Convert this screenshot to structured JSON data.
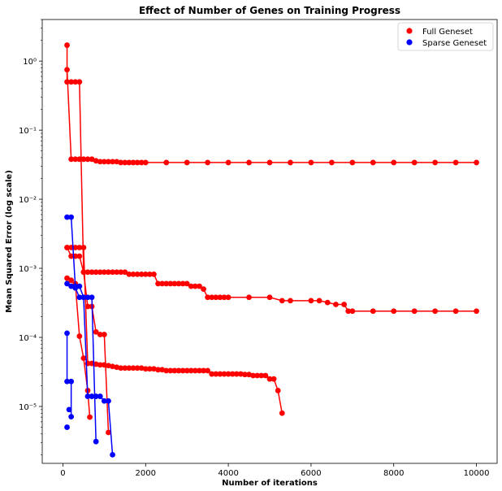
{
  "chart_data": {
    "type": "scatter",
    "title": "Effect of Number of Genes on Training Progress",
    "xlabel": "Number of iterations",
    "ylabel": "Mean Squared Error (log scale)",
    "xlim": [
      -500,
      10500
    ],
    "ylim": [
      1.5e-06,
      4
    ],
    "yscale": "log",
    "legend_position": "upper right",
    "x_ticks": [
      0,
      2000,
      4000,
      6000,
      8000,
      10000
    ],
    "x_tick_labels": [
      "0",
      "2000",
      "4000",
      "6000",
      "8000",
      "10000"
    ],
    "y_ticks": [
      1e-05,
      0.0001,
      0.001,
      0.01,
      0.1,
      1
    ],
    "y_tick_labels": [
      "10⁻⁵",
      "10⁻⁴",
      "10⁻³",
      "10⁻²",
      "10⁻¹",
      "10⁰"
    ],
    "colors": {
      "Full Geneset": "#ff0000",
      "Sparse Geneset": "#0000ff"
    },
    "legend": [
      "Full Geneset",
      "Sparse Geneset"
    ],
    "series": [
      {
        "name": "Full Geneset",
        "color": "#ff0000",
        "points": [
          [
            100,
            1.7
          ],
          [
            100,
            0.5
          ],
          [
            200,
            0.5
          ],
          [
            300,
            0.5
          ],
          [
            400,
            0.5
          ],
          [
            500,
            0.00088
          ],
          [
            600,
            0.00028
          ],
          [
            700,
            0.00028
          ],
          [
            800,
            0.00012
          ],
          [
            900,
            0.00011
          ],
          [
            1000,
            0.00011
          ],
          [
            1100,
            4.2e-06
          ]
        ]
      },
      {
        "name": "Full Geneset",
        "color": "#ff0000",
        "points": [
          [
            100,
            0.75
          ],
          [
            200,
            0.038
          ],
          [
            300,
            0.038
          ],
          [
            400,
            0.038
          ],
          [
            500,
            0.038
          ],
          [
            600,
            0.038
          ],
          [
            700,
            0.038
          ],
          [
            800,
            0.036
          ],
          [
            900,
            0.035
          ],
          [
            1000,
            0.035
          ],
          [
            1100,
            0.035
          ],
          [
            1200,
            0.035
          ],
          [
            1300,
            0.035
          ],
          [
            1400,
            0.034
          ],
          [
            1500,
            0.034
          ],
          [
            1600,
            0.034
          ],
          [
            1700,
            0.034
          ],
          [
            1800,
            0.034
          ],
          [
            1900,
            0.034
          ],
          [
            2000,
            0.034
          ],
          [
            2500,
            0.034
          ],
          [
            3000,
            0.034
          ],
          [
            3500,
            0.034
          ],
          [
            4000,
            0.034
          ],
          [
            4500,
            0.034
          ],
          [
            5000,
            0.034
          ],
          [
            5500,
            0.034
          ],
          [
            6000,
            0.034
          ],
          [
            6500,
            0.034
          ],
          [
            7000,
            0.034
          ],
          [
            7500,
            0.034
          ],
          [
            8000,
            0.034
          ],
          [
            8500,
            0.034
          ],
          [
            9000,
            0.034
          ],
          [
            9500,
            0.034
          ],
          [
            10000,
            0.034
          ]
        ]
      },
      {
        "name": "Full Geneset",
        "color": "#ff0000",
        "points": [
          [
            100,
            0.002
          ],
          [
            200,
            0.0015
          ],
          [
            300,
            0.0015
          ],
          [
            400,
            0.0015
          ],
          [
            500,
            0.00088
          ],
          [
            600,
            0.00088
          ],
          [
            700,
            0.00088
          ],
          [
            800,
            0.00088
          ],
          [
            900,
            0.00088
          ],
          [
            1000,
            0.00088
          ],
          [
            1100,
            0.00088
          ],
          [
            1200,
            0.00088
          ],
          [
            1300,
            0.00088
          ],
          [
            1400,
            0.00088
          ],
          [
            1500,
            0.00088
          ],
          [
            1600,
            0.00082
          ],
          [
            1700,
            0.00082
          ],
          [
            1800,
            0.00082
          ],
          [
            1900,
            0.00082
          ],
          [
            2000,
            0.00082
          ],
          [
            2100,
            0.00082
          ],
          [
            2200,
            0.00082
          ],
          [
            2300,
            0.0006
          ],
          [
            2400,
            0.0006
          ],
          [
            2500,
            0.0006
          ],
          [
            2600,
            0.0006
          ],
          [
            2700,
            0.0006
          ],
          [
            2800,
            0.0006
          ],
          [
            2900,
            0.0006
          ],
          [
            3000,
            0.0006
          ],
          [
            3100,
            0.00055
          ],
          [
            3200,
            0.00055
          ],
          [
            3300,
            0.00055
          ],
          [
            3400,
            0.0005
          ],
          [
            3500,
            0.00038
          ],
          [
            3600,
            0.00038
          ],
          [
            3700,
            0.00038
          ],
          [
            3800,
            0.00038
          ],
          [
            3900,
            0.00038
          ],
          [
            4000,
            0.00038
          ],
          [
            4500,
            0.00038
          ],
          [
            5000,
            0.00038
          ],
          [
            5300,
            0.00034
          ],
          [
            5500,
            0.00034
          ],
          [
            6000,
            0.00034
          ],
          [
            6200,
            0.00034
          ],
          [
            6400,
            0.00032
          ],
          [
            6600,
            0.0003
          ],
          [
            6800,
            0.0003
          ],
          [
            6900,
            0.00024
          ],
          [
            7000,
            0.00024
          ],
          [
            7500,
            0.00024
          ],
          [
            8000,
            0.00024
          ],
          [
            8500,
            0.00024
          ],
          [
            9000,
            0.00024
          ],
          [
            9500,
            0.00024
          ],
          [
            10000,
            0.00024
          ]
        ]
      },
      {
        "name": "Full Geneset",
        "color": "#ff0000",
        "points": [
          [
            100,
            0.002
          ],
          [
            200,
            0.002
          ],
          [
            300,
            0.002
          ],
          [
            400,
            0.002
          ],
          [
            500,
            0.002
          ],
          [
            600,
            4.2e-05
          ],
          [
            700,
            4.2e-05
          ],
          [
            800,
            4.1e-05
          ],
          [
            900,
            4e-05
          ],
          [
            1000,
            4e-05
          ],
          [
            1100,
            3.9e-05
          ],
          [
            1200,
            3.8e-05
          ],
          [
            1300,
            3.7e-05
          ],
          [
            1400,
            3.6e-05
          ],
          [
            1500,
            3.6e-05
          ],
          [
            1600,
            3.6e-05
          ],
          [
            1700,
            3.6e-05
          ],
          [
            1800,
            3.6e-05
          ],
          [
            1900,
            3.6e-05
          ],
          [
            2000,
            3.5e-05
          ],
          [
            2100,
            3.5e-05
          ],
          [
            2200,
            3.5e-05
          ],
          [
            2300,
            3.4e-05
          ],
          [
            2400,
            3.4e-05
          ],
          [
            2500,
            3.3e-05
          ],
          [
            2600,
            3.3e-05
          ],
          [
            2700,
            3.3e-05
          ],
          [
            2800,
            3.3e-05
          ],
          [
            2900,
            3.3e-05
          ],
          [
            3000,
            3.3e-05
          ],
          [
            3100,
            3.3e-05
          ],
          [
            3200,
            3.3e-05
          ],
          [
            3300,
            3.3e-05
          ],
          [
            3400,
            3.3e-05
          ],
          [
            3500,
            3.3e-05
          ],
          [
            3600,
            2.95e-05
          ],
          [
            3700,
            2.95e-05
          ],
          [
            3800,
            2.95e-05
          ],
          [
            3900,
            2.95e-05
          ],
          [
            4000,
            2.95e-05
          ],
          [
            4100,
            2.95e-05
          ],
          [
            4200,
            2.95e-05
          ],
          [
            4300,
            2.95e-05
          ],
          [
            4400,
            2.9e-05
          ],
          [
            4500,
            2.9e-05
          ],
          [
            4600,
            2.8e-05
          ],
          [
            4700,
            2.8e-05
          ],
          [
            4800,
            2.8e-05
          ],
          [
            4900,
            2.8e-05
          ],
          [
            5000,
            2.5e-05
          ],
          [
            5100,
            2.5e-05
          ],
          [
            5200,
            1.7e-05
          ],
          [
            5300,
            8e-06
          ]
        ]
      },
      {
        "name": "Full Geneset",
        "color": "#ff0000",
        "points": [
          [
            100,
            0.00072
          ],
          [
            200,
            0.00067
          ],
          [
            300,
            0.0006
          ],
          [
            400,
            0.000104
          ],
          [
            500,
            5e-05
          ],
          [
            600,
            1.7e-05
          ],
          [
            650,
            7e-06
          ]
        ]
      },
      {
        "name": "Sparse Geneset",
        "color": "#0000ff",
        "points": [
          [
            100,
            0.0055
          ],
          [
            200,
            0.0055
          ],
          [
            300,
            0.00055
          ],
          [
            400,
            0.00055
          ],
          [
            500,
            0.00038
          ],
          [
            600,
            0.00038
          ],
          [
            700,
            0.00038
          ],
          [
            800,
            3.1e-06
          ]
        ]
      },
      {
        "name": "Sparse Geneset",
        "color": "#0000ff",
        "points": [
          [
            100,
            0.0006
          ],
          [
            200,
            0.00055
          ],
          [
            300,
            0.00052
          ],
          [
            400,
            0.00038
          ],
          [
            500,
            0.00038
          ],
          [
            600,
            1.4e-05
          ],
          [
            700,
            1.4e-05
          ],
          [
            800,
            1.4e-05
          ],
          [
            900,
            1.4e-05
          ],
          [
            1000,
            1.2e-05
          ],
          [
            1100,
            1.2e-05
          ],
          [
            1200,
            2e-06
          ]
        ]
      },
      {
        "name": "Sparse Geneset",
        "color": "#0000ff",
        "points": [
          [
            100,
            0.000115
          ],
          [
            100,
            2.3e-05
          ],
          [
            200,
            2.3e-05
          ],
          [
            200,
            7.1e-06
          ]
        ]
      },
      {
        "name": "Sparse Geneset",
        "color": "#0000ff",
        "points": [
          [
            100,
            5e-06
          ]
        ]
      },
      {
        "name": "Sparse Geneset",
        "color": "#0000ff",
        "points": [
          [
            150,
            9e-06
          ]
        ]
      }
    ]
  }
}
